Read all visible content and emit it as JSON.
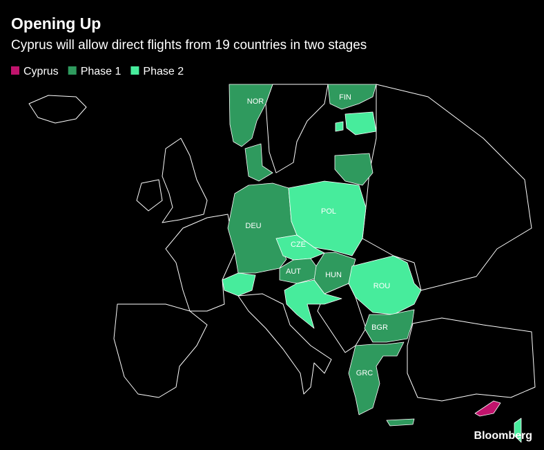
{
  "header": {
    "title": "Opening Up",
    "subtitle": "Cyprus will allow direct flights from 19 countries in two stages"
  },
  "legend": [
    {
      "label": "Cyprus",
      "color": "#c0136c"
    },
    {
      "label": "Phase 1",
      "color": "#2f9a5e"
    },
    {
      "label": "Phase 2",
      "color": "#47ec9c"
    }
  ],
  "map_labels": [
    "NOR",
    "FIN",
    "DEU",
    "POL",
    "CZE",
    "AUT",
    "HUN",
    "ROU",
    "BGR",
    "GRC"
  ],
  "source": "Bloomberg"
}
